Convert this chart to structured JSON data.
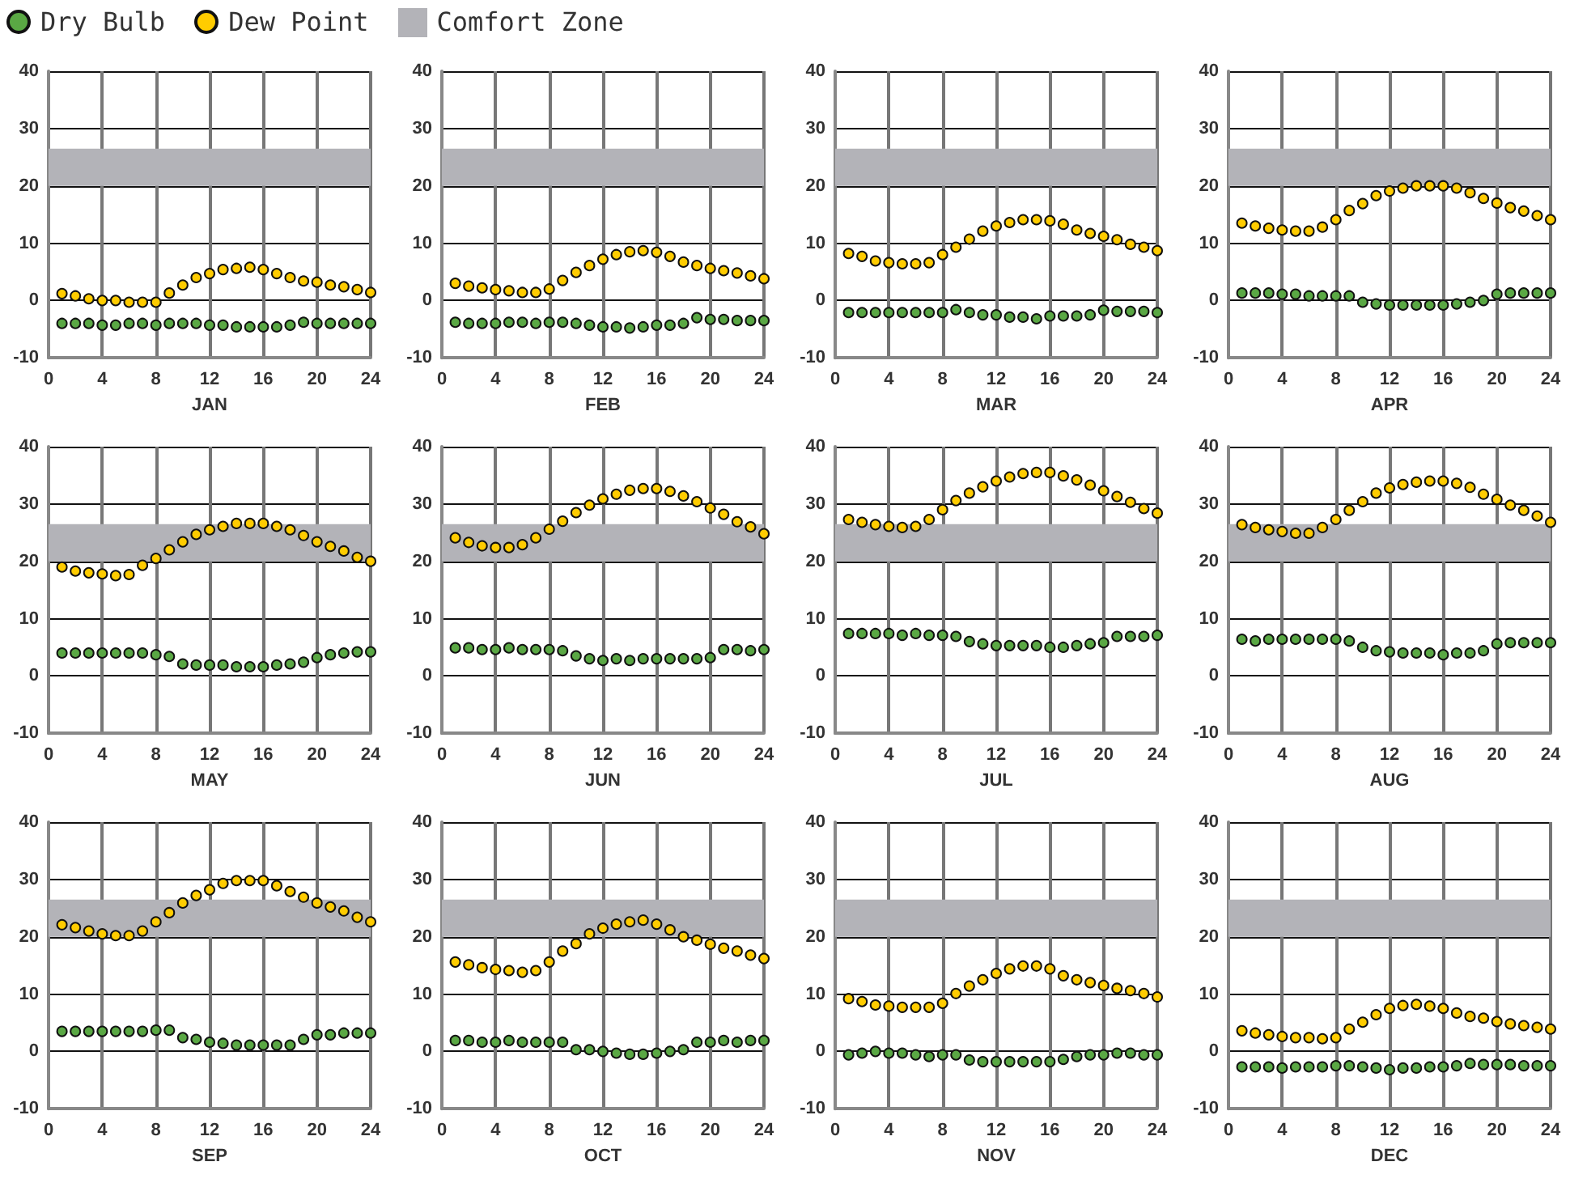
{
  "chart_data": [
    {
      "type": "scatter",
      "xlabel": "JAN",
      "x": [
        1,
        2,
        3,
        4,
        5,
        6,
        7,
        8,
        9,
        10,
        11,
        12,
        13,
        14,
        15,
        16,
        17,
        18,
        19,
        20,
        21,
        22,
        23,
        24
      ],
      "xlim": [
        0,
        24
      ],
      "xticks": [
        0,
        4,
        8,
        12,
        16,
        20,
        24
      ],
      "ylim": [
        -10,
        40
      ],
      "yticks": [
        -10,
        0,
        10,
        20,
        30,
        40
      ],
      "grid": true,
      "marker": "circle",
      "legend": "top right",
      "bands": [
        {
          "axis": "y",
          "from": 20,
          "to": 26.5,
          "label": "Comfort Zone",
          "color": "#b3b3b8"
        }
      ],
      "series": [
        {
          "name": "Dry Bulb",
          "color": "#5aa844",
          "values": [
            -4,
            -4,
            -4,
            -4.3,
            -4.3,
            -4,
            -4,
            -4.3,
            -4,
            -4,
            -4,
            -4.3,
            -4.3,
            -4.6,
            -4.6,
            -4.6,
            -4.6,
            -4.3,
            -3.8,
            -4,
            -4,
            -4,
            -4,
            -4
          ]
        },
        {
          "name": "Dew Point",
          "color": "#ffcc00",
          "values": [
            1.2,
            0.8,
            0.3,
            0,
            0,
            -0.3,
            -0.3,
            -0.3,
            1.3,
            2.7,
            4,
            4.7,
            5.4,
            5.6,
            5.8,
            5.4,
            4.7,
            4,
            3.4,
            3.2,
            2.7,
            2.4,
            1.9,
            1.4
          ]
        }
      ]
    },
    {
      "type": "scatter",
      "xlabel": "FEB",
      "x": [
        1,
        2,
        3,
        4,
        5,
        6,
        7,
        8,
        9,
        10,
        11,
        12,
        13,
        14,
        15,
        16,
        17,
        18,
        19,
        20,
        21,
        22,
        23,
        24
      ],
      "xlim": [
        0,
        24
      ],
      "xticks": [
        0,
        4,
        8,
        12,
        16,
        20,
        24
      ],
      "ylim": [
        -10,
        40
      ],
      "yticks": [
        -10,
        0,
        10,
        20,
        30,
        40
      ],
      "grid": true,
      "marker": "circle",
      "bands": [
        {
          "axis": "y",
          "from": 20,
          "to": 26.5,
          "color": "#b3b3b8"
        }
      ],
      "series": [
        {
          "color": "#5aa844",
          "values": [
            -3.8,
            -4,
            -4,
            -4,
            -3.8,
            -3.8,
            -4,
            -3.8,
            -3.8,
            -4,
            -4.3,
            -4.6,
            -4.6,
            -4.8,
            -4.6,
            -4.3,
            -4.3,
            -4,
            -3,
            -3.3,
            -3.3,
            -3.5,
            -3.5,
            -3.5
          ]
        },
        {
          "color": "#ffcc00",
          "values": [
            3,
            2.5,
            2.2,
            1.9,
            1.7,
            1.4,
            1.4,
            2,
            3.5,
            4.9,
            6.1,
            7.2,
            8,
            8.5,
            8.7,
            8.4,
            7.7,
            6.7,
            6.1,
            5.6,
            5.2,
            4.8,
            4.3,
            3.8
          ]
        }
      ]
    },
    {
      "type": "scatter",
      "xlabel": "MAR",
      "x": [
        1,
        2,
        3,
        4,
        5,
        6,
        7,
        8,
        9,
        10,
        11,
        12,
        13,
        14,
        15,
        16,
        17,
        18,
        19,
        20,
        21,
        22,
        23,
        24
      ],
      "xlim": [
        0,
        24
      ],
      "xticks": [
        0,
        4,
        8,
        12,
        16,
        20,
        24
      ],
      "ylim": [
        -10,
        40
      ],
      "yticks": [
        -10,
        0,
        10,
        20,
        30,
        40
      ],
      "grid": true,
      "marker": "circle",
      "bands": [
        {
          "axis": "y",
          "from": 20,
          "to": 26.5,
          "color": "#b3b3b8"
        }
      ],
      "series": [
        {
          "color": "#5aa844",
          "values": [
            -2.1,
            -2.1,
            -2.1,
            -2.1,
            -2.1,
            -2.1,
            -2.1,
            -2.1,
            -1.6,
            -2.1,
            -2.5,
            -2.5,
            -2.9,
            -2.9,
            -3.2,
            -2.7,
            -2.7,
            -2.7,
            -2.5,
            -1.7,
            -1.9,
            -1.9,
            -1.9,
            -2.1
          ]
        },
        {
          "color": "#ffcc00",
          "values": [
            8.2,
            7.7,
            6.9,
            6.6,
            6.4,
            6.4,
            6.6,
            8,
            9.3,
            10.7,
            12.1,
            13,
            13.6,
            14.1,
            14.1,
            13.9,
            13.3,
            12.3,
            11.7,
            11.2,
            10.6,
            9.8,
            9.3,
            8.7
          ]
        }
      ]
    },
    {
      "type": "scatter",
      "xlabel": "APR",
      "x": [
        1,
        2,
        3,
        4,
        5,
        6,
        7,
        8,
        9,
        10,
        11,
        12,
        13,
        14,
        15,
        16,
        17,
        18,
        19,
        20,
        21,
        22,
        23,
        24
      ],
      "xlim": [
        0,
        24
      ],
      "xticks": [
        0,
        4,
        8,
        12,
        16,
        20,
        24
      ],
      "ylim": [
        -10,
        40
      ],
      "yticks": [
        -10,
        0,
        10,
        20,
        30,
        40
      ],
      "grid": true,
      "marker": "circle",
      "bands": [
        {
          "axis": "y",
          "from": 20,
          "to": 26.5,
          "color": "#b3b3b8"
        }
      ],
      "series": [
        {
          "color": "#5aa844",
          "values": [
            1.3,
            1.3,
            1.3,
            1.1,
            1.1,
            0.8,
            0.8,
            0.8,
            0.8,
            -0.3,
            -0.6,
            -0.8,
            -0.8,
            -0.8,
            -0.8,
            -0.8,
            -0.6,
            -0.3,
            0,
            1.1,
            1.3,
            1.3,
            1.3,
            1.3
          ]
        },
        {
          "color": "#ffcc00",
          "values": [
            13.5,
            13,
            12.6,
            12.3,
            12.1,
            12.1,
            12.8,
            14.1,
            15.7,
            16.9,
            18.3,
            19.1,
            19.6,
            20,
            20,
            20,
            19.6,
            18.8,
            17.8,
            17,
            16.2,
            15.6,
            14.8,
            14.1
          ]
        }
      ]
    },
    {
      "type": "scatter",
      "xlabel": "MAY",
      "x": [
        1,
        2,
        3,
        4,
        5,
        6,
        7,
        8,
        9,
        10,
        11,
        12,
        13,
        14,
        15,
        16,
        17,
        18,
        19,
        20,
        21,
        22,
        23,
        24
      ],
      "xlim": [
        0,
        24
      ],
      "xticks": [
        0,
        4,
        8,
        12,
        16,
        20,
        24
      ],
      "ylim": [
        -10,
        40
      ],
      "yticks": [
        -10,
        0,
        10,
        20,
        30,
        40
      ],
      "grid": true,
      "marker": "circle",
      "bands": [
        {
          "axis": "y",
          "from": 20,
          "to": 26.5,
          "color": "#b3b3b8"
        }
      ],
      "series": [
        {
          "color": "#5aa844",
          "values": [
            4,
            4,
            4,
            4,
            4,
            4,
            4,
            3.7,
            3.4,
            2.1,
            1.9,
            1.9,
            1.9,
            1.6,
            1.6,
            1.6,
            1.9,
            2.1,
            2.4,
            3.2,
            3.7,
            4,
            4.2,
            4.2
          ]
        },
        {
          "color": "#ffcc00",
          "values": [
            19,
            18.3,
            18,
            17.8,
            17.5,
            17.7,
            19.3,
            20.5,
            22,
            23.4,
            24.7,
            25.5,
            26.1,
            26.6,
            26.6,
            26.6,
            26.1,
            25.5,
            24.5,
            23.4,
            22.6,
            21.8,
            20.7,
            20
          ]
        }
      ]
    },
    {
      "type": "scatter",
      "xlabel": "JUN",
      "x": [
        1,
        2,
        3,
        4,
        5,
        6,
        7,
        8,
        9,
        10,
        11,
        12,
        13,
        14,
        15,
        16,
        17,
        18,
        19,
        20,
        21,
        22,
        23,
        24
      ],
      "xlim": [
        0,
        24
      ],
      "xticks": [
        0,
        4,
        8,
        12,
        16,
        20,
        24
      ],
      "ylim": [
        -10,
        40
      ],
      "yticks": [
        -10,
        0,
        10,
        20,
        30,
        40
      ],
      "grid": true,
      "marker": "circle",
      "bands": [
        {
          "axis": "y",
          "from": 20,
          "to": 26.5,
          "color": "#b3b3b8"
        }
      ],
      "series": [
        {
          "color": "#5aa844",
          "values": [
            4.9,
            4.9,
            4.6,
            4.6,
            4.9,
            4.6,
            4.6,
            4.6,
            4.4,
            3.5,
            3,
            2.7,
            3,
            2.7,
            3,
            3,
            3,
            3,
            3,
            3.2,
            4.6,
            4.6,
            4.4,
            4.6
          ]
        },
        {
          "color": "#ffcc00",
          "values": [
            24.1,
            23.3,
            22.7,
            22.4,
            22.4,
            22.9,
            24.1,
            25.6,
            27,
            28.5,
            29.8,
            30.9,
            31.7,
            32.4,
            32.7,
            32.7,
            32.2,
            31.4,
            30.4,
            29.3,
            28.2,
            26.9,
            26,
            24.8
          ]
        }
      ]
    },
    {
      "type": "scatter",
      "xlabel": "JUL",
      "x": [
        1,
        2,
        3,
        4,
        5,
        6,
        7,
        8,
        9,
        10,
        11,
        12,
        13,
        14,
        15,
        16,
        17,
        18,
        19,
        20,
        21,
        22,
        23,
        24
      ],
      "xlim": [
        0,
        24
      ],
      "xticks": [
        0,
        4,
        8,
        12,
        16,
        20,
        24
      ],
      "ylim": [
        -10,
        40
      ],
      "yticks": [
        -10,
        0,
        10,
        20,
        30,
        40
      ],
      "grid": true,
      "marker": "circle",
      "bands": [
        {
          "axis": "y",
          "from": 20,
          "to": 26.5,
          "color": "#b3b3b8"
        }
      ],
      "series": [
        {
          "color": "#5aa844",
          "values": [
            7.4,
            7.4,
            7.4,
            7.4,
            7.1,
            7.4,
            7.1,
            7.1,
            6.9,
            6,
            5.6,
            5.3,
            5.3,
            5.3,
            5.3,
            5,
            5,
            5.3,
            5.6,
            5.8,
            6.9,
            6.9,
            6.9,
            7.1
          ]
        },
        {
          "color": "#ffcc00",
          "values": [
            27.3,
            26.8,
            26.4,
            26.1,
            25.9,
            26.1,
            27.3,
            29,
            30.6,
            31.9,
            33,
            34,
            34.7,
            35.3,
            35.5,
            35.5,
            34.9,
            34.2,
            33.3,
            32.3,
            31.3,
            30.3,
            29.2,
            28.4
          ]
        }
      ]
    },
    {
      "type": "scatter",
      "xlabel": "AUG",
      "x": [
        1,
        2,
        3,
        4,
        5,
        6,
        7,
        8,
        9,
        10,
        11,
        12,
        13,
        14,
        15,
        16,
        17,
        18,
        19,
        20,
        21,
        22,
        23,
        24
      ],
      "xlim": [
        0,
        24
      ],
      "xticks": [
        0,
        4,
        8,
        12,
        16,
        20,
        24
      ],
      "ylim": [
        -10,
        40
      ],
      "yticks": [
        -10,
        0,
        10,
        20,
        30,
        40
      ],
      "grid": true,
      "marker": "circle",
      "bands": [
        {
          "axis": "y",
          "from": 20,
          "to": 26.5,
          "color": "#b3b3b8"
        }
      ],
      "series": [
        {
          "color": "#5aa844",
          "values": [
            6.4,
            6.1,
            6.4,
            6.4,
            6.4,
            6.4,
            6.4,
            6.4,
            6.1,
            5,
            4.4,
            4.2,
            4,
            4,
            4,
            3.7,
            4,
            4,
            4.4,
            5.6,
            5.8,
            5.8,
            5.8,
            5.8
          ]
        },
        {
          "color": "#ffcc00",
          "values": [
            26.4,
            25.9,
            25.5,
            25.2,
            24.9,
            24.9,
            25.9,
            27.3,
            28.9,
            30.4,
            31.9,
            32.8,
            33.4,
            33.8,
            34,
            34,
            33.6,
            32.9,
            31.7,
            30.8,
            29.8,
            28.9,
            27.9,
            26.8
          ]
        }
      ]
    },
    {
      "type": "scatter",
      "xlabel": "SEP",
      "x": [
        1,
        2,
        3,
        4,
        5,
        6,
        7,
        8,
        9,
        10,
        11,
        12,
        13,
        14,
        15,
        16,
        17,
        18,
        19,
        20,
        21,
        22,
        23,
        24
      ],
      "xlim": [
        0,
        24
      ],
      "xticks": [
        0,
        4,
        8,
        12,
        16,
        20,
        24
      ],
      "ylim": [
        -10,
        40
      ],
      "yticks": [
        -10,
        0,
        10,
        20,
        30,
        40
      ],
      "grid": true,
      "marker": "circle",
      "bands": [
        {
          "axis": "y",
          "from": 20,
          "to": 26.5,
          "color": "#b3b3b8"
        }
      ],
      "series": [
        {
          "color": "#5aa844",
          "values": [
            3.5,
            3.5,
            3.5,
            3.5,
            3.5,
            3.5,
            3.5,
            3.7,
            3.7,
            2.4,
            2.1,
            1.6,
            1.4,
            1.1,
            1.1,
            1.1,
            1.1,
            1.1,
            2.1,
            2.9,
            2.9,
            3.2,
            3.2,
            3.2
          ]
        },
        {
          "color": "#ffcc00",
          "values": [
            22.1,
            21.6,
            21,
            20.5,
            20.2,
            20.2,
            21,
            22.6,
            24.2,
            25.9,
            27.2,
            28.2,
            29.3,
            29.8,
            29.8,
            29.8,
            28.9,
            27.9,
            26.9,
            25.9,
            25.2,
            24.5,
            23.4,
            22.6
          ]
        }
      ]
    },
    {
      "type": "scatter",
      "xlabel": "OCT",
      "x": [
        1,
        2,
        3,
        4,
        5,
        6,
        7,
        8,
        9,
        10,
        11,
        12,
        13,
        14,
        15,
        16,
        17,
        18,
        19,
        20,
        21,
        22,
        23,
        24
      ],
      "xlim": [
        0,
        24
      ],
      "xticks": [
        0,
        4,
        8,
        12,
        16,
        20,
        24
      ],
      "ylim": [
        -10,
        40
      ],
      "yticks": [
        -10,
        0,
        10,
        20,
        30,
        40
      ],
      "grid": true,
      "marker": "circle",
      "bands": [
        {
          "axis": "y",
          "from": 20,
          "to": 26.5,
          "color": "#b3b3b8"
        }
      ],
      "series": [
        {
          "color": "#5aa844",
          "values": [
            1.9,
            1.9,
            1.6,
            1.6,
            1.9,
            1.6,
            1.6,
            1.6,
            1.6,
            0.3,
            0.3,
            0,
            -0.3,
            -0.5,
            -0.5,
            -0.3,
            0,
            0.3,
            1.6,
            1.6,
            1.9,
            1.6,
            1.9,
            1.9
          ]
        },
        {
          "color": "#ffcc00",
          "values": [
            15.6,
            15.1,
            14.6,
            14.3,
            14.1,
            13.8,
            14.1,
            15.6,
            17.5,
            18.8,
            20.5,
            21.5,
            22.2,
            22.6,
            22.9,
            22.2,
            21.2,
            20,
            19.4,
            18.7,
            18,
            17.5,
            16.8,
            16.2
          ]
        }
      ]
    },
    {
      "type": "scatter",
      "xlabel": "NOV",
      "x": [
        1,
        2,
        3,
        4,
        5,
        6,
        7,
        8,
        9,
        10,
        11,
        12,
        13,
        14,
        15,
        16,
        17,
        18,
        19,
        20,
        21,
        22,
        23,
        24
      ],
      "xlim": [
        0,
        24
      ],
      "xticks": [
        0,
        4,
        8,
        12,
        16,
        20,
        24
      ],
      "ylim": [
        -10,
        40
      ],
      "yticks": [
        -10,
        0,
        10,
        20,
        30,
        40
      ],
      "grid": true,
      "marker": "circle",
      "bands": [
        {
          "axis": "y",
          "from": 20,
          "to": 26.5,
          "color": "#b3b3b8"
        }
      ],
      "series": [
        {
          "color": "#5aa844",
          "values": [
            -0.6,
            -0.3,
            0,
            -0.3,
            -0.3,
            -0.6,
            -0.9,
            -0.6,
            -0.6,
            -1.5,
            -1.8,
            -1.8,
            -1.8,
            -1.8,
            -1.8,
            -1.8,
            -1.4,
            -0.9,
            -0.6,
            -0.6,
            -0.3,
            -0.3,
            -0.6,
            -0.6
          ]
        },
        {
          "color": "#ffcc00",
          "values": [
            9.2,
            8.7,
            8.1,
            7.9,
            7.7,
            7.7,
            7.7,
            8.4,
            10.1,
            11.4,
            12.5,
            13.6,
            14.4,
            14.9,
            14.9,
            14.4,
            13.2,
            12.5,
            12,
            11.5,
            11,
            10.6,
            10.1,
            9.5
          ]
        }
      ]
    },
    {
      "type": "scatter",
      "xlabel": "DEC",
      "x": [
        1,
        2,
        3,
        4,
        5,
        6,
        7,
        8,
        9,
        10,
        11,
        12,
        13,
        14,
        15,
        16,
        17,
        18,
        19,
        20,
        21,
        22,
        23,
        24
      ],
      "xlim": [
        0,
        24
      ],
      "xticks": [
        0,
        4,
        8,
        12,
        16,
        20,
        24
      ],
      "ylim": [
        -10,
        40
      ],
      "yticks": [
        -10,
        0,
        10,
        20,
        30,
        40
      ],
      "grid": true,
      "marker": "circle",
      "bands": [
        {
          "axis": "y",
          "from": 20,
          "to": 26.5,
          "color": "#b3b3b8"
        }
      ],
      "series": [
        {
          "color": "#5aa844",
          "values": [
            -2.7,
            -2.7,
            -2.7,
            -2.9,
            -2.7,
            -2.7,
            -2.7,
            -2.5,
            -2.5,
            -2.7,
            -2.9,
            -3.2,
            -2.9,
            -2.9,
            -2.7,
            -2.7,
            -2.5,
            -2.1,
            -2.3,
            -2.3,
            -2.3,
            -2.5,
            -2.5,
            -2.5
          ]
        },
        {
          "color": "#ffcc00",
          "values": [
            3.6,
            3.2,
            2.9,
            2.6,
            2.4,
            2.4,
            2.2,
            2.4,
            3.9,
            5.1,
            6.4,
            7.5,
            8,
            8.2,
            7.9,
            7.5,
            6.7,
            6.1,
            5.8,
            5.2,
            4.8,
            4.5,
            4.2,
            3.9
          ]
        }
      ]
    }
  ]
}
